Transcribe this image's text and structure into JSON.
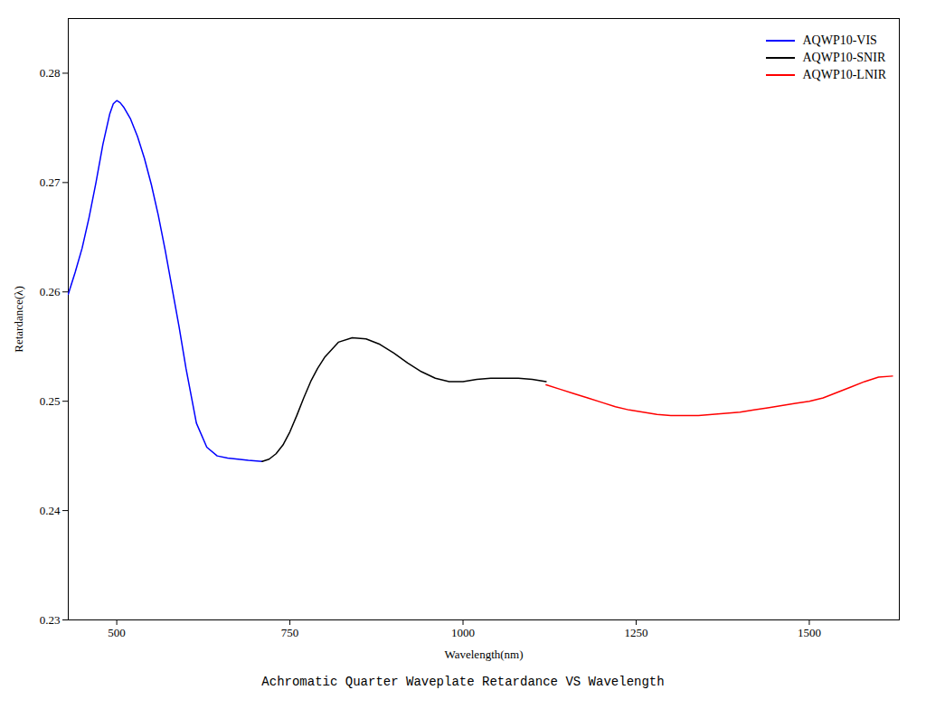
{
  "chart_data": {
    "type": "line",
    "title": "Achromatic Quarter Waveplate Retardance VS Wavelength",
    "xlabel": "Wavelength(nm)",
    "ylabel": "Retardance(λ)",
    "xlim": [
      430,
      1630
    ],
    "ylim": [
      0.23,
      0.285
    ],
    "xticks": [
      500,
      750,
      1000,
      1250,
      1500
    ],
    "yticks": [
      0.23,
      0.24,
      0.25,
      0.26,
      0.27,
      0.28
    ],
    "grid": false,
    "legend": "upper right",
    "series": [
      {
        "name": "AQWP10-VIS",
        "color": "#0000ff",
        "x": [
          430,
          440,
          450,
          460,
          470,
          480,
          490,
          495,
          500,
          505,
          510,
          520,
          530,
          540,
          550,
          560,
          570,
          580,
          590,
          600,
          615,
          630,
          645,
          660,
          675,
          690,
          710
        ],
        "values": [
          0.2598,
          0.2618,
          0.264,
          0.2668,
          0.27,
          0.2735,
          0.2763,
          0.2772,
          0.2775,
          0.2773,
          0.2769,
          0.2758,
          0.2742,
          0.2722,
          0.2698,
          0.267,
          0.2638,
          0.2603,
          0.2568,
          0.253,
          0.248,
          0.2458,
          0.245,
          0.2448,
          0.2447,
          0.2446,
          0.2445
        ]
      },
      {
        "name": "AQWP10-SNIR",
        "color": "#000000",
        "x": [
          710,
          720,
          730,
          740,
          750,
          760,
          770,
          780,
          790,
          800,
          820,
          840,
          860,
          880,
          900,
          920,
          940,
          960,
          980,
          1000,
          1020,
          1040,
          1060,
          1080,
          1100,
          1120
        ],
        "values": [
          0.2445,
          0.2447,
          0.2452,
          0.246,
          0.2472,
          0.2487,
          0.2503,
          0.2518,
          0.253,
          0.254,
          0.2554,
          0.2558,
          0.2557,
          0.2552,
          0.2544,
          0.2535,
          0.2527,
          0.2521,
          0.2518,
          0.2518,
          0.252,
          0.2521,
          0.2521,
          0.2521,
          0.252,
          0.2518
        ]
      },
      {
        "name": "AQWP10-LNIR",
        "color": "#ff0000",
        "x": [
          1120,
          1140,
          1160,
          1180,
          1200,
          1220,
          1240,
          1260,
          1280,
          1300,
          1320,
          1340,
          1360,
          1380,
          1400,
          1420,
          1440,
          1460,
          1480,
          1500,
          1520,
          1540,
          1560,
          1580,
          1600,
          1620
        ],
        "values": [
          0.2515,
          0.2511,
          0.2507,
          0.2503,
          0.2499,
          0.2495,
          0.2492,
          0.249,
          0.2488,
          0.2487,
          0.2487,
          0.2487,
          0.2488,
          0.2489,
          0.249,
          0.2492,
          0.2494,
          0.2496,
          0.2498,
          0.25,
          0.2503,
          0.2508,
          0.2513,
          0.2518,
          0.2522,
          0.2523
        ]
      }
    ]
  }
}
